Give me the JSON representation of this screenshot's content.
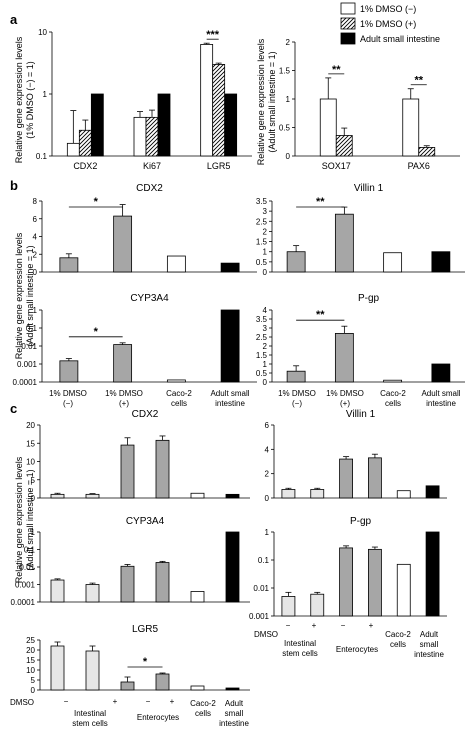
{
  "panel_labels": [
    "a",
    "b",
    "c"
  ],
  "legend": [
    {
      "label": "1% DMSO (−)",
      "fill": "white"
    },
    {
      "label": "1% DMSO (+)",
      "fill": "hatch"
    },
    {
      "label": "Adult small intestine",
      "fill": "black"
    }
  ],
  "colors": {
    "white": "#ffffff",
    "gray": "#a6a6a6",
    "light": "#e6e6e6",
    "black": "#000000",
    "stroke": "#000000"
  },
  "ylabels": {
    "a1": [
      "Relative gene expression levels",
      "(1% DMSO (−) = 1)"
    ],
    "a2": [
      "Relative gene expression levels",
      "(Adult small intestine = 1)"
    ],
    "b": [
      "Relative gene expression levels",
      "(Adult small intestine = 1)"
    ],
    "c": [
      "Relative gene expression levels",
      "(Adult small intestine = 1)"
    ]
  },
  "xticks_b": [
    "1% DMSO",
    "(−)",
    "1% DMSO",
    "(+)",
    "Caco-2",
    "cells",
    "Adult small",
    "intestine"
  ],
  "xticks_c": {
    "dmso": "DMSO",
    "signs": [
      "−",
      "+",
      "−",
      "+"
    ],
    "groups": [
      "Intestinal",
      "stem cells",
      "Enterocytes",
      "Caco-2",
      "cells",
      "Adult",
      "small",
      "intestine"
    ]
  },
  "chart_data": [
    {
      "id": "a1",
      "type": "bar",
      "scale": "log",
      "ylim": [
        0.1,
        10
      ],
      "yticks": [
        "0.1",
        "1",
        "10"
      ],
      "categories": [
        "CDX2",
        "Ki67",
        "LGR5"
      ],
      "series": [
        {
          "name": "1% DMSO (−)",
          "fill": "white",
          "values": [
            0.16,
            0.42,
            6.3
          ],
          "errors": [
            0.38,
            0.1,
            0.3
          ]
        },
        {
          "name": "1% DMSO (+)",
          "fill": "hatch",
          "values": [
            0.26,
            0.42,
            3.0
          ],
          "errors": [
            0.12,
            0.13,
            0.15
          ]
        },
        {
          "name": "Adult small intestine",
          "fill": "black",
          "values": [
            1,
            1,
            1
          ],
          "errors": [
            0,
            0,
            0
          ]
        }
      ],
      "significance": [
        {
          "category": 2,
          "label": "***"
        }
      ]
    },
    {
      "id": "a2",
      "type": "bar",
      "scale": "linear",
      "ylim": [
        0,
        2
      ],
      "yticks": [
        "0",
        "0.5",
        "1",
        "1.5",
        "2"
      ],
      "categories": [
        "SOX17",
        "PAX6"
      ],
      "series": [
        {
          "name": "1% DMSO (−)",
          "fill": "white",
          "values": [
            1.0,
            1.0
          ],
          "errors": [
            0.37,
            0.18
          ]
        },
        {
          "name": "1% DMSO (+)",
          "fill": "hatch",
          "values": [
            0.36,
            0.15
          ],
          "errors": [
            0.13,
            0.03
          ]
        }
      ],
      "significance": [
        {
          "category": 0,
          "label": "**"
        },
        {
          "category": 1,
          "label": "**"
        }
      ]
    },
    {
      "id": "b_cdx2",
      "title": "CDX2",
      "type": "bar",
      "scale": "linear",
      "ylim": [
        0,
        8
      ],
      "yticks": [
        "0",
        "2",
        "4",
        "6",
        "8"
      ],
      "categories": [
        "1% DMSO (−)",
        "1% DMSO (+)",
        "Caco-2 cells",
        "Adult small intestine"
      ],
      "fills": [
        "gray",
        "gray",
        "white",
        "black"
      ],
      "values": [
        1.6,
        6.3,
        1.8,
        1.0
      ],
      "errors": [
        0.45,
        1.3,
        0,
        0
      ],
      "significance": [
        {
          "from": 0,
          "to": 1,
          "label": "*"
        }
      ]
    },
    {
      "id": "b_villin",
      "title": "Villin 1",
      "type": "bar",
      "scale": "linear",
      "ylim": [
        0,
        3.5
      ],
      "yticks": [
        "0",
        "0.5",
        "1",
        "1.5",
        "2",
        "2.5",
        "3",
        "3.5"
      ],
      "categories": [
        "1% DMSO (−)",
        "1% DMSO (+)",
        "Caco-2 cells",
        "Adult small intestine"
      ],
      "fills": [
        "gray",
        "gray",
        "white",
        "black"
      ],
      "values": [
        1.0,
        2.85,
        0.95,
        1.0
      ],
      "errors": [
        0.3,
        0.35,
        0,
        0
      ],
      "significance": [
        {
          "from": 0,
          "to": 1,
          "label": "**"
        }
      ]
    },
    {
      "id": "b_cyp",
      "title": "CYP3A4",
      "type": "bar",
      "scale": "log",
      "ylim": [
        0.0001,
        1
      ],
      "yticks": [
        "0.0001",
        "0.001",
        "0.01",
        "0.1",
        "1"
      ],
      "categories": [
        "1% DMSO (−)",
        "1% DMSO (+)",
        "Caco-2 cells",
        "Adult small intestine"
      ],
      "fills": [
        "gray",
        "gray",
        "white",
        "black"
      ],
      "values": [
        0.0015,
        0.012,
        0.00013,
        1.0
      ],
      "errors": [
        0.0005,
        0.003,
        0,
        0
      ],
      "significance": [
        {
          "from": 0,
          "to": 1,
          "label": "*"
        }
      ]
    },
    {
      "id": "b_pgp",
      "title": "P-gp",
      "type": "bar",
      "scale": "linear",
      "ylim": [
        0,
        4
      ],
      "yticks": [
        "0",
        "0.5",
        "1",
        "1.5",
        "2",
        "2.5",
        "3",
        "3.5",
        "4"
      ],
      "categories": [
        "1% DMSO (−)",
        "1% DMSO (+)",
        "Caco-2 cells",
        "Adult small intestine"
      ],
      "fills": [
        "gray",
        "gray",
        "white",
        "black"
      ],
      "values": [
        0.6,
        2.7,
        0.1,
        1.0
      ],
      "errors": [
        0.3,
        0.4,
        0,
        0
      ],
      "significance": [
        {
          "from": 0,
          "to": 1,
          "label": "**"
        }
      ]
    },
    {
      "id": "c_cdx2",
      "title": "CDX2",
      "type": "bar",
      "scale": "linear",
      "ylim": [
        0,
        20
      ],
      "yticks": [
        "0",
        "5",
        "10",
        "15",
        "20"
      ],
      "categories": [
        "Intestinal stem cells −",
        "Intestinal stem cells +",
        "Enterocytes −",
        "Enterocytes +",
        "Caco-2 cells",
        "Adult small intestine"
      ],
      "fills": [
        "light",
        "light",
        "gray",
        "gray",
        "white",
        "black"
      ],
      "values": [
        1.0,
        1.0,
        14.5,
        15.8,
        1.3,
        1.0
      ],
      "errors": [
        0.3,
        0.2,
        2.0,
        1.2,
        0,
        0
      ]
    },
    {
      "id": "c_villin",
      "title": "Villin 1",
      "type": "bar",
      "scale": "linear",
      "ylim": [
        0,
        6
      ],
      "yticks": [
        "0",
        "2",
        "4",
        "6"
      ],
      "categories": [
        "Intestinal stem cells −",
        "Intestinal stem cells +",
        "Enterocytes −",
        "Enterocytes +",
        "Caco-2 cells",
        "Adult small intestine"
      ],
      "fills": [
        "light",
        "light",
        "gray",
        "gray",
        "white",
        "black"
      ],
      "values": [
        0.7,
        0.7,
        3.2,
        3.3,
        0.6,
        1.0
      ],
      "errors": [
        0.1,
        0.1,
        0.2,
        0.3,
        0,
        0
      ]
    },
    {
      "id": "c_cyp",
      "title": "CYP3A4",
      "type": "bar",
      "scale": "log",
      "ylim": [
        0.0001,
        1
      ],
      "yticks": [
        "0.0001",
        "0.001",
        "0.01",
        "0.1",
        "1"
      ],
      "categories": [
        "Intestinal stem cells −",
        "Intestinal stem cells +",
        "Enterocytes −",
        "Enterocytes +",
        "Caco-2 cells",
        "Adult small intestine"
      ],
      "fills": [
        "light",
        "light",
        "gray",
        "gray",
        "white",
        "black"
      ],
      "values": [
        0.0018,
        0.001,
        0.011,
        0.018,
        0.0004,
        1.0
      ],
      "errors": [
        0.0003,
        0.0002,
        0.003,
        0.003,
        0,
        0
      ]
    },
    {
      "id": "c_pgp",
      "title": "P-gp",
      "type": "bar",
      "scale": "log",
      "ylim": [
        0.001,
        1
      ],
      "yticks": [
        "0.001",
        "0.01",
        "0.1",
        "1"
      ],
      "categories": [
        "Intestinal stem cells −",
        "Intestinal stem cells +",
        "Enterocytes −",
        "Enterocytes +",
        "Caco-2 cells",
        "Adult small intestine"
      ],
      "fills": [
        "light",
        "light",
        "gray",
        "gray",
        "white",
        "black"
      ],
      "values": [
        0.005,
        0.006,
        0.27,
        0.24,
        0.07,
        1.0
      ],
      "errors": [
        0.002,
        0.001,
        0.05,
        0.05,
        0,
        0
      ]
    },
    {
      "id": "c_lgr5",
      "title": "LGR5",
      "type": "bar",
      "scale": "linear",
      "ylim": [
        0,
        25
      ],
      "yticks": [
        "0",
        "5",
        "10",
        "15",
        "20",
        "25"
      ],
      "categories": [
        "Intestinal stem cells −",
        "Intestinal stem cells +",
        "Enterocytes −",
        "Enterocytes +",
        "Caco-2 cells",
        "Adult small intestine"
      ],
      "fills": [
        "light",
        "light",
        "gray",
        "gray",
        "white",
        "black"
      ],
      "values": [
        22.0,
        19.5,
        4.0,
        8.0,
        2.0,
        1.0
      ],
      "errors": [
        2.0,
        2.5,
        2.5,
        0.5,
        0,
        0
      ],
      "significance": [
        {
          "from": 2,
          "to": 3,
          "label": "*"
        }
      ]
    }
  ]
}
